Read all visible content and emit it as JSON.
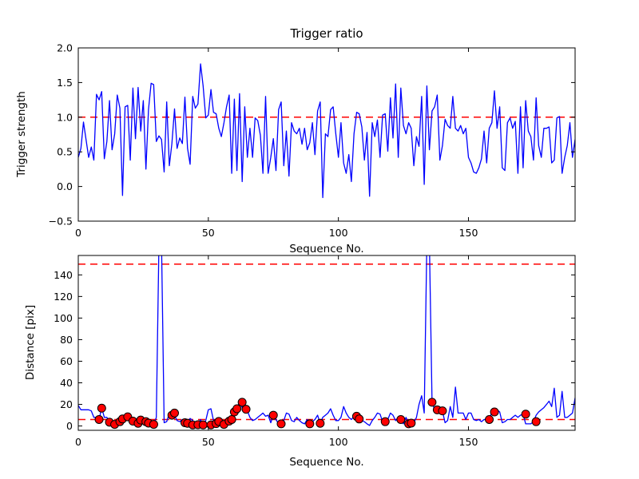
{
  "figure": {
    "background": "#ffffff",
    "line_color": "#0000ff",
    "threshold_color": "#ff0000",
    "marker_face_color": "#ff0000",
    "marker_edge_color": "#000000",
    "spine_color": "#000000"
  },
  "chart_data": [
    {
      "type": "line",
      "title": "Trigger ratio",
      "xlabel": "Sequence No.",
      "ylabel": "Trigger strength",
      "xlim": [
        0,
        191
      ],
      "ylim": [
        -0.5,
        2.0
      ],
      "xtick_values": [
        0,
        50,
        100,
        150
      ],
      "xtick_labels": [
        "0",
        "50",
        "100",
        "150"
      ],
      "ytick_values": [
        2.0,
        1.5,
        1.0,
        0.5,
        0.0,
        -0.5
      ],
      "ytick_labels": [
        "2.0",
        "1.5",
        "1.0",
        "0.5",
        "0.0",
        "−0.5"
      ],
      "grid": false,
      "legend": "none",
      "threshold_lines": [
        1.0
      ],
      "series": [
        {
          "name": "trigger-strength",
          "color": "#0000ff",
          "values": [
            0.42,
            0.55,
            0.93,
            0.67,
            0.42,
            0.57,
            0.38,
            1.33,
            1.25,
            1.37,
            0.4,
            0.65,
            1.24,
            0.53,
            0.76,
            1.32,
            1.13,
            -0.13,
            1.15,
            1.17,
            0.38,
            1.42,
            0.69,
            1.43,
            0.8,
            1.24,
            0.25,
            1.11,
            1.49,
            1.47,
            0.65,
            0.73,
            0.68,
            0.21,
            1.22,
            0.3,
            0.62,
            1.12,
            0.55,
            0.7,
            0.62,
            1.29,
            0.55,
            0.32,
            1.3,
            1.13,
            1.19,
            1.77,
            1.45,
            0.99,
            1.03,
            1.4,
            1.07,
            1.05,
            0.84,
            0.72,
            0.92,
            1.15,
            1.32,
            0.19,
            1.26,
            0.23,
            1.34,
            0.07,
            1.15,
            0.42,
            0.84,
            0.42,
            0.99,
            0.95,
            0.74,
            0.19,
            1.3,
            0.19,
            0.42,
            0.69,
            0.23,
            1.11,
            1.22,
            0.3,
            0.8,
            0.15,
            0.92,
            0.8,
            0.76,
            0.84,
            0.61,
            0.84,
            0.53,
            0.63,
            0.92,
            0.46,
            1.09,
            1.22,
            -0.16,
            0.76,
            0.72,
            1.11,
            1.15,
            0.76,
            0.42,
            0.92,
            0.34,
            0.19,
            0.46,
            0.07,
            0.76,
            1.07,
            1.05,
            0.86,
            0.38,
            0.78,
            -0.14,
            0.92,
            0.72,
            0.96,
            0.42,
            1.03,
            1.05,
            0.51,
            1.28,
            0.7,
            1.48,
            0.42,
            1.42,
            0.88,
            0.76,
            0.92,
            0.84,
            0.3,
            0.72,
            0.58,
            1.3,
            0.03,
            1.45,
            0.53,
            1.09,
            1.15,
            1.32,
            0.38,
            0.59,
            0.97,
            0.88,
            0.84,
            1.3,
            0.84,
            0.8,
            0.88,
            0.76,
            0.84,
            0.42,
            0.34,
            0.21,
            0.19,
            0.27,
            0.4,
            0.8,
            0.34,
            0.84,
            0.92,
            1.38,
            0.84,
            1.15,
            0.27,
            0.23,
            0.92,
            0.99,
            0.84,
            0.94,
            0.19,
            1.15,
            0.27,
            1.24,
            0.8,
            0.72,
            0.38,
            1.28,
            0.59,
            0.42,
            0.84,
            0.84,
            0.86,
            0.34,
            0.38,
            0.99,
            1.01,
            0.19,
            0.42,
            0.59,
            0.92,
            0.42,
            0.68
          ]
        }
      ]
    },
    {
      "type": "line+scatter",
      "title": "",
      "xlabel": "Sequence No.",
      "ylabel": "Distance [pix]",
      "xlim": [
        0,
        191
      ],
      "ylim": [
        -4,
        158
      ],
      "xtick_values": [
        0,
        50,
        100,
        150
      ],
      "xtick_labels": [
        "0",
        "50",
        "100",
        "150"
      ],
      "ytick_values": [
        0,
        20,
        40,
        60,
        80,
        100,
        120,
        140
      ],
      "ytick_labels": [
        "0",
        "20",
        "40",
        "60",
        "80",
        "100",
        "120",
        "140"
      ],
      "grid": false,
      "legend": "none",
      "threshold_lines": [
        150,
        6
      ],
      "series": [
        {
          "name": "distance",
          "color": "#0000ff",
          "values": [
            19,
            15,
            15,
            15,
            15,
            14,
            8,
            8,
            6,
            17,
            8,
            8,
            3.5,
            5,
            2,
            1.5,
            4,
            6.5,
            5,
            8.5,
            11,
            4.5,
            3,
            2.5,
            5.5,
            4.5,
            3,
            4.5,
            2.5,
            1.5,
            8,
            170,
            170,
            3,
            4,
            12,
            13,
            10,
            5,
            4,
            6,
            3,
            4,
            7,
            5,
            1,
            2,
            6,
            1,
            5,
            15,
            16,
            5,
            2,
            4,
            1.5,
            4,
            5,
            6,
            9,
            13,
            16,
            23,
            17,
            21,
            14,
            8,
            5,
            6,
            8,
            10,
            12,
            9,
            10,
            3,
            10,
            6,
            2,
            3,
            5,
            12,
            11,
            5,
            4,
            8,
            5,
            3,
            2,
            6,
            2,
            4,
            6,
            10,
            2.5,
            8,
            10,
            12,
            16,
            10,
            5,
            5,
            8,
            18,
            12,
            8,
            6,
            9,
            9,
            6.5,
            5,
            4,
            2,
            0.5,
            5,
            8,
            12,
            11,
            4,
            4,
            6,
            12,
            10,
            5,
            8,
            6,
            2,
            8,
            2,
            0.5,
            3,
            8,
            20,
            28,
            12,
            170,
            170,
            22,
            15,
            15,
            12,
            14,
            3,
            5,
            18,
            8,
            36,
            12,
            12,
            12,
            6,
            12,
            12,
            6,
            5,
            6,
            4,
            6,
            6,
            6,
            13,
            15,
            15,
            13,
            3,
            4,
            6,
            6,
            8,
            10,
            8,
            10,
            11,
            2,
            2,
            2,
            4,
            10,
            13,
            15,
            17,
            20,
            23,
            18,
            35,
            8,
            10,
            32,
            8,
            8,
            10,
            12,
            26
          ]
        }
      ],
      "scatter": {
        "name": "triggered-points",
        "color": "#ff0000",
        "edge_color": "#000000",
        "points": [
          [
            8,
            6
          ],
          [
            9,
            16.5
          ],
          [
            12,
            3.5
          ],
          [
            14,
            1.5
          ],
          [
            16,
            4
          ],
          [
            17,
            6.5
          ],
          [
            19,
            8.5
          ],
          [
            21,
            4.5
          ],
          [
            23,
            2.5
          ],
          [
            24,
            5.5
          ],
          [
            26,
            4
          ],
          [
            27,
            2.7
          ],
          [
            29,
            1.5
          ],
          [
            36,
            10
          ],
          [
            37,
            12
          ],
          [
            41,
            3
          ],
          [
            42,
            2.5
          ],
          [
            44,
            1
          ],
          [
            46,
            1.2
          ],
          [
            48,
            1
          ],
          [
            51,
            1
          ],
          [
            53,
            2.2
          ],
          [
            54,
            4.2
          ],
          [
            56,
            1.5
          ],
          [
            58,
            4.5
          ],
          [
            59,
            6
          ],
          [
            60,
            13
          ],
          [
            61,
            16
          ],
          [
            63,
            22
          ],
          [
            64.5,
            15.5
          ],
          [
            75,
            10
          ],
          [
            78,
            2
          ],
          [
            89,
            2
          ],
          [
            93,
            2.5
          ],
          [
            107,
            9
          ],
          [
            108,
            6.5
          ],
          [
            118,
            4
          ],
          [
            124,
            6
          ],
          [
            127,
            2
          ],
          [
            128,
            2.7
          ],
          [
            136,
            22
          ],
          [
            138,
            15
          ],
          [
            140,
            14
          ],
          [
            158,
            6
          ],
          [
            160,
            13
          ],
          [
            172,
            11
          ],
          [
            176,
            4
          ]
        ]
      }
    }
  ]
}
